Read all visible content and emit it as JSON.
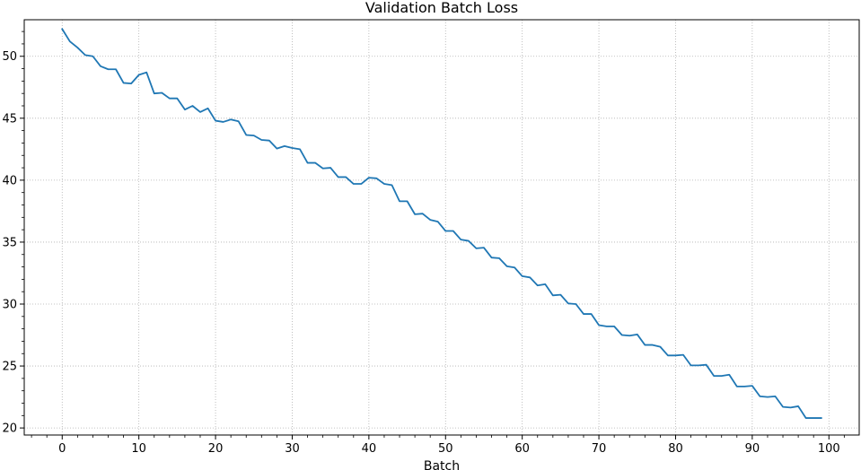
{
  "chart_data": {
    "type": "line",
    "title": "Validation Batch Loss",
    "xlabel": "Batch",
    "ylabel": "",
    "xlim": [
      -4.95,
      103.95
    ],
    "ylim": [
      19.43,
      52.95
    ],
    "x_ticks": [
      0,
      10,
      20,
      30,
      40,
      50,
      60,
      70,
      80,
      90,
      100
    ],
    "y_ticks": [
      20,
      25,
      30,
      35,
      40,
      45,
      50
    ],
    "x_minor_step": 2,
    "y_minor_step": 1,
    "grid": true,
    "grid_style": "dotted",
    "series": [
      {
        "color": "#1f77b4",
        "x": [
          0,
          1,
          2,
          3,
          4,
          5,
          6,
          7,
          8,
          9,
          10,
          11,
          12,
          13,
          14,
          15,
          16,
          17,
          18,
          19,
          20,
          21,
          22,
          23,
          24,
          25,
          26,
          27,
          28,
          29,
          30,
          31,
          32,
          33,
          34,
          35,
          36,
          37,
          38,
          39,
          40,
          41,
          42,
          43,
          44,
          45,
          46,
          47,
          48,
          49,
          50,
          51,
          52,
          53,
          54,
          55,
          56,
          57,
          58,
          59,
          60,
          61,
          62,
          63,
          64,
          65,
          66,
          67,
          68,
          69,
          70,
          71,
          72,
          73,
          74,
          75,
          76,
          77,
          78,
          79,
          80,
          81,
          82,
          83,
          84,
          85,
          86,
          87,
          88,
          89,
          90,
          91,
          92,
          93,
          94,
          95,
          96,
          97,
          98,
          99
        ],
        "values": [
          52.2,
          51.2,
          50.7,
          50.1,
          50.0,
          49.2,
          48.95,
          48.95,
          47.85,
          47.8,
          48.5,
          48.7,
          47.0,
          47.05,
          46.6,
          46.6,
          45.7,
          46.0,
          45.5,
          45.8,
          44.8,
          44.7,
          44.9,
          44.75,
          43.65,
          43.6,
          43.25,
          43.2,
          42.55,
          42.75,
          42.6,
          42.5,
          41.4,
          41.4,
          40.95,
          41.0,
          40.25,
          40.25,
          39.7,
          39.7,
          40.2,
          40.15,
          39.7,
          39.6,
          38.3,
          38.3,
          37.25,
          37.3,
          36.8,
          36.65,
          35.9,
          35.9,
          35.2,
          35.1,
          34.5,
          34.55,
          33.75,
          33.7,
          33.05,
          32.95,
          32.25,
          32.15,
          31.5,
          31.6,
          30.7,
          30.75,
          30.05,
          30.0,
          29.2,
          29.2,
          28.3,
          28.2,
          28.2,
          27.5,
          27.45,
          27.55,
          26.7,
          26.7,
          26.55,
          25.85,
          25.85,
          25.9,
          25.05,
          25.05,
          25.1,
          24.2,
          24.2,
          24.3,
          23.35,
          23.35,
          23.4,
          22.55,
          22.5,
          22.55,
          21.7,
          21.65,
          21.75,
          20.8,
          20.8,
          20.8
        ]
      }
    ]
  }
}
